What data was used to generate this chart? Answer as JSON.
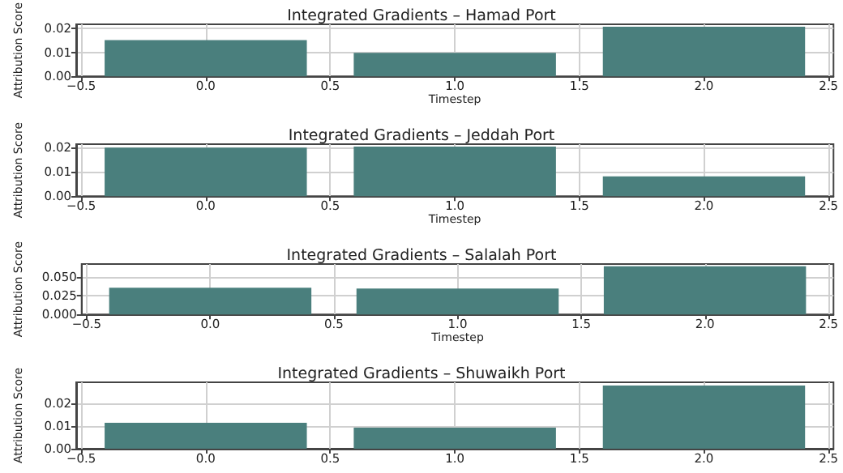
{
  "chart_data": [
    {
      "type": "bar",
      "title": "Integrated Gradients – Hamad Port",
      "xlabel": "Timestep",
      "ylabel": "Attribution Score",
      "x": [
        0,
        1,
        2
      ],
      "values": [
        0.0152,
        0.0098,
        0.0208
      ],
      "color": "#4a7f7d",
      "xlim": [
        -0.52,
        2.52
      ],
      "xticks": [
        {
          "value": -0.5,
          "label": "−0.5"
        },
        {
          "value": 0,
          "label": "0.0"
        },
        {
          "value": 0.5,
          "label": "0.5"
        },
        {
          "value": 1,
          "label": "1.0"
        },
        {
          "value": 1.5,
          "label": "1.5"
        },
        {
          "value": 2,
          "label": "2.0"
        },
        {
          "value": 2.5,
          "label": "2.5"
        }
      ],
      "ylim": [
        0,
        0.0218
      ],
      "yticks": [
        {
          "value": 0,
          "label": "0.00"
        },
        {
          "value": 0.01,
          "label": "0.01"
        },
        {
          "value": 0.02,
          "label": "0.02"
        }
      ],
      "grid": true
    },
    {
      "type": "bar",
      "title": "Integrated Gradients – Jeddah Port",
      "xlabel": "Timestep",
      "ylabel": "Attribution Score",
      "x": [
        0,
        1,
        2
      ],
      "values": [
        0.0198,
        0.0202,
        0.0081
      ],
      "color": "#4a7f7d",
      "xlim": [
        -0.52,
        2.52
      ],
      "xticks": [
        {
          "value": -0.5,
          "label": "−0.5"
        },
        {
          "value": 0,
          "label": "0.0"
        },
        {
          "value": 0.5,
          "label": "0.5"
        },
        {
          "value": 1,
          "label": "1.0"
        },
        {
          "value": 1.5,
          "label": "1.5"
        },
        {
          "value": 2,
          "label": "2.0"
        },
        {
          "value": 2.5,
          "label": "2.5"
        }
      ],
      "ylim": [
        0,
        0.0212
      ],
      "yticks": [
        {
          "value": 0,
          "label": "0.00"
        },
        {
          "value": 0.01,
          "label": "0.01"
        },
        {
          "value": 0.02,
          "label": "0.02"
        }
      ],
      "grid": true
    },
    {
      "type": "bar",
      "title": "Integrated Gradients – Salalah Port",
      "xlabel": "Timestep",
      "ylabel": "Attribution Score",
      "x": [
        0,
        1,
        2
      ],
      "values": [
        0.036,
        0.035,
        0.065
      ],
      "color": "#4a7f7d",
      "xlim": [
        -0.52,
        2.52
      ],
      "xticks": [
        {
          "value": -0.5,
          "label": "−0.5"
        },
        {
          "value": 0,
          "label": "0.0"
        },
        {
          "value": 0.5,
          "label": "0.5"
        },
        {
          "value": 1,
          "label": "1.0"
        },
        {
          "value": 1.5,
          "label": "1.5"
        },
        {
          "value": 2,
          "label": "2.0"
        },
        {
          "value": 2.5,
          "label": "2.5"
        }
      ],
      "ylim": [
        0,
        0.068
      ],
      "yticks": [
        {
          "value": 0,
          "label": "0.000"
        },
        {
          "value": 0.025,
          "label": "0.025"
        },
        {
          "value": 0.05,
          "label": "0.050"
        }
      ],
      "grid": true
    },
    {
      "type": "bar",
      "title": "Integrated Gradients – Shuwaikh Port",
      "ylabel": "Attribution Score",
      "x": [
        0,
        1,
        2
      ],
      "values": [
        0.0115,
        0.0093,
        0.028
      ],
      "color": "#4a7f7d",
      "xlim": [
        -0.52,
        2.52
      ],
      "xticks": [
        {
          "value": -0.5,
          "label": "−0.5"
        },
        {
          "value": 0,
          "label": "0.0"
        },
        {
          "value": 0.5,
          "label": "0.5"
        },
        {
          "value": 1,
          "label": "1.0"
        },
        {
          "value": 1.5,
          "label": "1.5"
        },
        {
          "value": 2,
          "label": "2.0"
        },
        {
          "value": 2.5,
          "label": "2.5"
        }
      ],
      "ylim": [
        0,
        0.0294
      ],
      "yticks": [
        {
          "value": 0,
          "label": "0.00"
        },
        {
          "value": 0.01,
          "label": "0.01"
        },
        {
          "value": 0.02,
          "label": "0.02"
        }
      ],
      "grid": true
    }
  ]
}
